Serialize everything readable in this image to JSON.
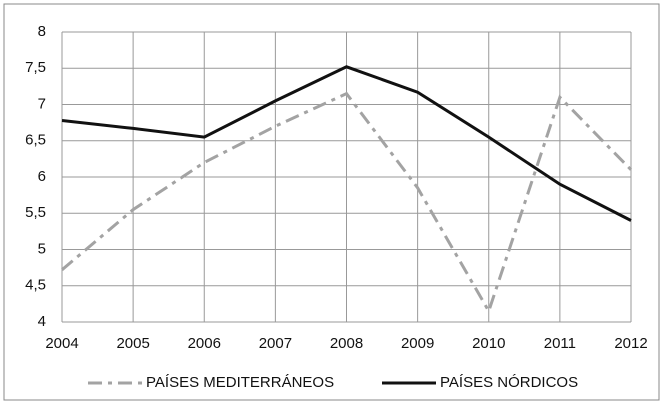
{
  "chart_data": {
    "type": "line",
    "x": [
      2004,
      2005,
      2006,
      2007,
      2008,
      2009,
      2010,
      2011,
      2012
    ],
    "xlim": [
      2004,
      2012
    ],
    "xticks": [
      2004,
      2005,
      2006,
      2007,
      2008,
      2009,
      2010,
      2011,
      2012
    ],
    "ylim": [
      4,
      8
    ],
    "yticks": [
      4,
      {
        "value": 4.5,
        "label": "4,5"
      },
      5,
      {
        "value": 5.5,
        "label": "5,5"
      },
      6,
      {
        "value": 6.5,
        "label": "6,5"
      },
      7,
      {
        "value": 7.5,
        "label": "7,5"
      },
      8
    ],
    "grid": true,
    "legend": "bottom",
    "series": [
      {
        "name": "PAÍSES MEDITERRÁNEOS",
        "color": "#a3a3a3",
        "style": "dash-dot",
        "values": [
          4.72,
          5.55,
          6.2,
          6.7,
          7.15,
          5.85,
          4.15,
          7.1,
          6.1
        ]
      },
      {
        "name": "PAÍSES NÓRDICOS",
        "color": "#111111",
        "style": "solid",
        "values": [
          6.78,
          6.67,
          6.55,
          7.05,
          7.52,
          7.17,
          6.55,
          5.9,
          5.4
        ]
      }
    ]
  }
}
